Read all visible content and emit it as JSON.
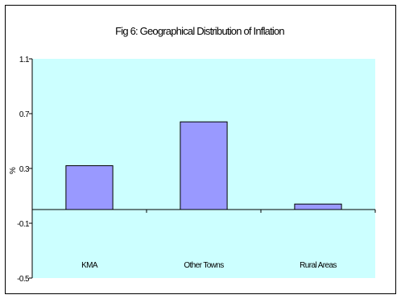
{
  "chart_data": {
    "type": "bar",
    "title": "Fig 6: Geographical Distribution of Inflation",
    "xlabel": "",
    "ylabel": "%",
    "categories": [
      "KMA",
      "Other Towns",
      "Rural Areas"
    ],
    "values": [
      0.32,
      0.64,
      0.04
    ],
    "ylim": [
      -0.5,
      1.1
    ],
    "yticks": [
      -0.5,
      -0.1,
      0.3,
      0.7,
      1.1
    ],
    "ytick_labels": [
      "-0.5",
      "-0.1",
      "0.3",
      "0.7",
      "1.1"
    ],
    "grid": false,
    "legend": "none",
    "colors": {
      "plot_background": "#ccffff",
      "bar_fill": "#9999ff",
      "bar_stroke": "#000000",
      "axis": "#000000"
    }
  }
}
